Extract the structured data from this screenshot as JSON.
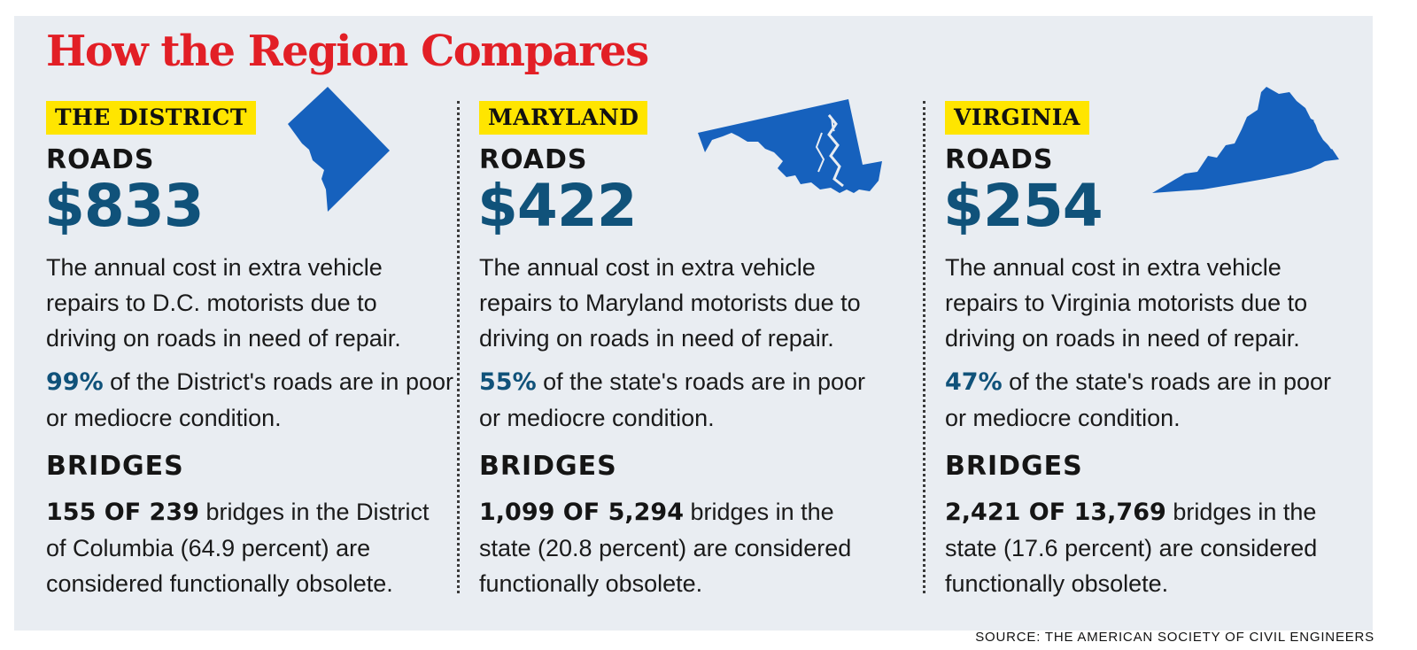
{
  "title": "How the Region Compares",
  "source": "SOURCE: THE AMERICAN SOCIETY OF CIVIL ENGINEERS",
  "colors": {
    "title_red": "#e21f26",
    "badge_yellow": "#ffe500",
    "value_blue": "#10527a",
    "map_blue": "#1661bd",
    "panel_bg": "#e9edf2"
  },
  "regions": [
    {
      "name": "THE DISTRICT",
      "map_icon": "dc-map-icon",
      "roads_label": "ROADS",
      "roads_value": "$833",
      "description": "The annual cost in extra vehicle repairs to D.C. motorists due to driving on roads in need of repair.",
      "percent": "99%",
      "percent_text": "of the District's roads are in poor or mediocre condition.",
      "bridges_label": "BRIDGES",
      "bridges_count": "155 OF 239",
      "bridges_text": "bridges in the District of Columbia (64.9 percent) are considered functionally obsolete."
    },
    {
      "name": "MARYLAND",
      "map_icon": "maryland-map-icon",
      "roads_label": "ROADS",
      "roads_value": "$422",
      "description": "The annual cost in extra vehicle repairs to Maryland motorists due to driving on roads in need of repair.",
      "percent": "55%",
      "percent_text": "of the state's roads are in poor or mediocre condition.",
      "bridges_label": "BRIDGES",
      "bridges_count": "1,099 OF 5,294",
      "bridges_text": "bridges in the state (20.8 percent) are considered functionally obsolete."
    },
    {
      "name": "VIRGINIA",
      "map_icon": "virginia-map-icon",
      "roads_label": "ROADS",
      "roads_value": "$254",
      "description": "The annual cost in extra vehicle repairs to Virginia motorists due to driving on roads in need of repair.",
      "percent": "47%",
      "percent_text": "of the state's roads are in poor or mediocre condition.",
      "bridges_label": "BRIDGES",
      "bridges_count": "2,421 OF 13,769",
      "bridges_text": "bridges in the state (17.6 percent) are considered functionally obsolete."
    }
  ]
}
